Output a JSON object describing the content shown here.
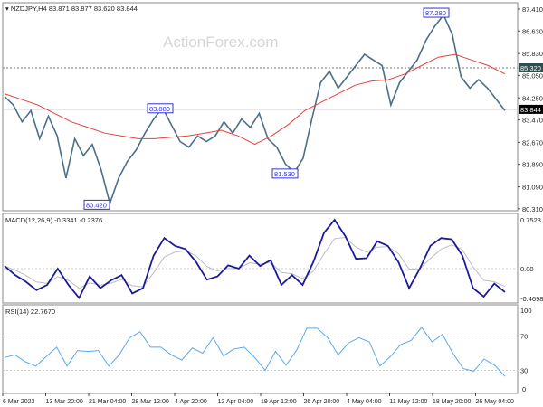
{
  "header": {
    "title": "NZDJPY,H4",
    "ohlc": "83.871 83.877 83.620 83.844"
  },
  "watermark": "ActionForex.com",
  "colors": {
    "price": "#4a6f88",
    "ma": "#e8403c",
    "macd": "#1a1a9a",
    "signal": "#bdbdbd",
    "rsi": "#5aa8f0",
    "last_price_bg": "#000000",
    "level_bg": "#2f4f4f"
  },
  "chart_data": [
    {
      "type": "line",
      "panel": "price",
      "ylim": [
        80.31,
        87.41
      ],
      "yticks": [
        "87.410",
        "86.630",
        "85.830",
        "85.050",
        "84.250",
        "83.470",
        "82.670",
        "81.890",
        "81.090",
        "80.310"
      ],
      "xticks": [
        "6 Mar 2023",
        "13 Mar 20:00",
        "21 Mar 04:00",
        "28 Mar 12:00",
        "4 Apr 20:00",
        "12 Apr 04:00",
        "19 Apr 12:00",
        "26 Apr 20:00",
        "4 May 04:00",
        "11 May 12:00",
        "18 May 20:00",
        "26 May 04:00"
      ],
      "close": [
        84.3,
        84.0,
        83.4,
        83.8,
        82.8,
        83.6,
        82.9,
        81.4,
        82.8,
        82.2,
        82.6,
        81.7,
        80.5,
        81.4,
        82.0,
        82.4,
        83.0,
        83.5,
        83.9,
        83.3,
        82.7,
        82.5,
        82.9,
        82.7,
        82.9,
        83.4,
        83.0,
        83.5,
        83.2,
        83.7,
        82.8,
        82.5,
        81.9,
        81.6,
        82.1,
        83.5,
        84.8,
        85.2,
        84.6,
        85.0,
        85.4,
        85.8,
        85.6,
        85.4,
        84.0,
        84.8,
        85.2,
        85.6,
        86.3,
        86.8,
        87.2,
        86.5,
        85.0,
        84.6,
        84.9,
        84.6,
        84.2,
        83.8
      ],
      "moving_average": [
        84.4,
        84.2,
        84.0,
        83.7,
        83.4,
        83.2,
        83.0,
        82.9,
        82.8,
        82.8,
        82.85,
        82.9,
        83.0,
        83.1,
        82.9,
        82.6,
        82.9,
        83.3,
        83.8,
        84.1,
        84.4,
        84.7,
        84.85,
        84.9,
        85.1,
        85.4,
        85.7,
        85.8,
        85.6,
        85.4,
        85.1
      ],
      "annotations": [
        "87.280",
        "83.880",
        "81.530",
        "80.420"
      ],
      "levels": [
        {
          "value": "85.320",
          "style": "dashed"
        },
        {
          "value": "83.844",
          "style": "last-price"
        }
      ]
    },
    {
      "type": "line",
      "panel": "macd",
      "label": "MACD(12,26,9) -0.3341 -0.2376",
      "ylim": [
        -0.4698,
        0.7523
      ],
      "yticks": [
        "0.7523",
        "0.00",
        "-0.4698"
      ],
      "macd": [
        0.04,
        -0.1,
        -0.2,
        -0.33,
        -0.25,
        0.0,
        -0.25,
        -0.45,
        -0.12,
        -0.3,
        -0.18,
        -0.1,
        -0.38,
        -0.3,
        0.2,
        0.47,
        0.35,
        0.3,
        0.1,
        -0.17,
        -0.12,
        0.05,
        0.0,
        0.2,
        0.04,
        0.13,
        -0.25,
        -0.1,
        -0.25,
        0.1,
        0.55,
        0.75,
        0.5,
        0.15,
        0.16,
        0.42,
        0.35,
        0.1,
        -0.3,
        0.0,
        0.35,
        0.47,
        0.45,
        0.2,
        -0.3,
        -0.43,
        -0.23,
        -0.36
      ]
    },
    {
      "type": "line",
      "panel": "rsi",
      "label": "RSI(14) 22.7670",
      "ylim": [
        0,
        100
      ],
      "yticks": [
        "100",
        "70",
        "30",
        "0"
      ],
      "rsi": [
        45,
        48,
        40,
        35,
        46,
        57,
        35,
        53,
        52,
        53,
        35,
        48,
        68,
        75,
        57,
        57,
        48,
        42,
        56,
        50,
        68,
        47,
        55,
        57,
        45,
        30,
        52,
        36,
        53,
        79,
        79,
        68,
        48,
        62,
        68,
        63,
        35,
        46,
        60,
        65,
        80,
        63,
        72,
        50,
        32,
        29,
        43,
        36,
        23
      ]
    }
  ]
}
